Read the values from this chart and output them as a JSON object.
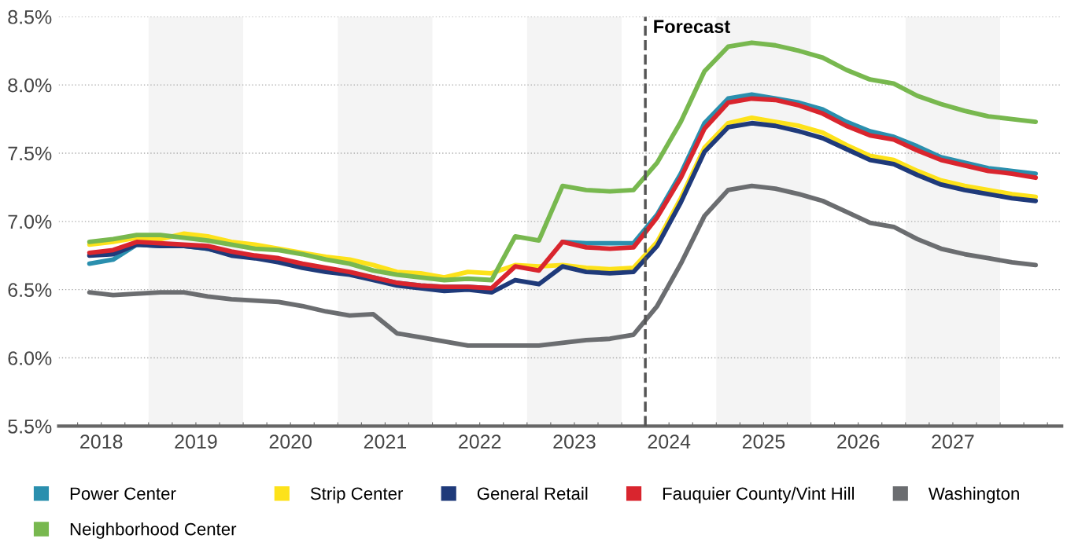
{
  "chart_data": {
    "type": "line",
    "x": [
      2018.375,
      2018.625,
      2018.875,
      2019.125,
      2019.375,
      2019.625,
      2019.875,
      2020.125,
      2020.375,
      2020.625,
      2020.875,
      2021.125,
      2021.375,
      2021.625,
      2021.875,
      2022.125,
      2022.375,
      2022.625,
      2022.875,
      2023.125,
      2023.375,
      2023.625,
      2023.875,
      2024.125,
      2024.375,
      2024.625,
      2024.875,
      2025.125,
      2025.375,
      2025.625,
      2025.875,
      2026.125,
      2026.375,
      2026.625,
      2026.875,
      2027.125,
      2027.375,
      2027.625,
      2027.875,
      2028.125,
      2028.375
    ],
    "series": [
      {
        "name": "Power Center",
        "color": "#2a8fae",
        "values": [
          6.69,
          6.72,
          6.83,
          6.82,
          6.82,
          6.8,
          6.76,
          6.74,
          6.72,
          6.68,
          6.65,
          6.62,
          6.59,
          6.55,
          6.53,
          6.52,
          6.52,
          6.51,
          null,
          null,
          6.85,
          6.84,
          6.84,
          6.84,
          7.05,
          7.35,
          7.72,
          7.9,
          7.93,
          7.9,
          7.87,
          7.82,
          7.73,
          7.66,
          7.62,
          7.55,
          7.47,
          7.43,
          7.39,
          7.37,
          7.35
        ]
      },
      {
        "name": "Strip Center",
        "color": "#fde21a",
        "values": [
          6.83,
          6.85,
          6.88,
          6.87,
          6.91,
          6.89,
          6.85,
          6.83,
          6.8,
          6.77,
          6.74,
          6.72,
          6.68,
          6.63,
          6.62,
          6.59,
          6.63,
          6.62,
          6.68,
          6.67,
          6.68,
          6.66,
          6.65,
          6.66,
          6.85,
          7.17,
          7.54,
          7.72,
          7.76,
          7.73,
          7.7,
          7.65,
          7.56,
          7.48,
          7.45,
          7.37,
          7.3,
          7.26,
          7.23,
          7.2,
          7.18
        ]
      },
      {
        "name": "General Retail",
        "color": "#1f3a7a",
        "values": [
          6.75,
          6.76,
          6.83,
          6.82,
          6.82,
          6.8,
          6.75,
          6.73,
          6.7,
          6.66,
          6.63,
          6.61,
          6.57,
          6.53,
          6.51,
          6.49,
          6.5,
          6.48,
          6.57,
          6.54,
          6.67,
          6.63,
          6.62,
          6.63,
          6.82,
          7.14,
          7.51,
          7.69,
          7.72,
          7.7,
          7.66,
          7.61,
          7.53,
          7.45,
          7.42,
          7.34,
          7.27,
          7.23,
          7.2,
          7.17,
          7.15
        ]
      },
      {
        "name": "Fauquier County/Vint Hill",
        "color": "#d9252e",
        "values": [
          6.77,
          6.79,
          6.85,
          6.84,
          6.83,
          6.82,
          6.78,
          6.75,
          6.73,
          6.69,
          6.66,
          6.63,
          6.59,
          6.55,
          6.53,
          6.52,
          6.52,
          6.51,
          6.67,
          6.64,
          6.85,
          6.81,
          6.8,
          6.81,
          7.03,
          7.32,
          7.68,
          7.87,
          7.9,
          7.89,
          7.85,
          7.79,
          7.7,
          7.63,
          7.6,
          7.52,
          7.45,
          7.41,
          7.37,
          7.35,
          7.32
        ]
      },
      {
        "name": "Washington",
        "color": "#6b6d70",
        "values": [
          6.48,
          6.46,
          6.47,
          6.48,
          6.48,
          6.45,
          6.43,
          6.42,
          6.41,
          6.38,
          6.34,
          6.31,
          6.32,
          6.18,
          6.15,
          6.12,
          6.09,
          6.09,
          6.09,
          6.09,
          6.11,
          6.13,
          6.14,
          6.17,
          6.38,
          6.69,
          7.04,
          7.23,
          7.26,
          7.24,
          7.2,
          7.15,
          7.07,
          6.99,
          6.96,
          6.87,
          6.8,
          6.76,
          6.73,
          6.7,
          6.68
        ]
      },
      {
        "name": "Neighborhood Center",
        "color": "#78b84f",
        "values": [
          6.85,
          6.87,
          6.9,
          6.9,
          6.88,
          6.86,
          6.83,
          6.8,
          6.79,
          6.76,
          6.72,
          6.69,
          6.64,
          6.61,
          6.59,
          6.57,
          6.58,
          6.57,
          6.89,
          6.86,
          7.26,
          7.23,
          7.22,
          7.23,
          7.43,
          7.73,
          8.1,
          8.28,
          8.31,
          8.29,
          8.25,
          8.2,
          8.11,
          8.04,
          8.01,
          7.92,
          7.86,
          7.81,
          7.77,
          7.75,
          7.73
        ]
      }
    ],
    "xlim": [
      2018.05,
      2028.65
    ],
    "xticks": [
      {
        "value": 2018.25,
        "label": null
      },
      {
        "value": 2018.5,
        "label": "2018"
      },
      {
        "value": 2018.75,
        "label": null
      },
      {
        "value": 2019,
        "label": null
      },
      {
        "value": 2019.25,
        "label": null
      },
      {
        "value": 2019.5,
        "label": "2019"
      },
      {
        "value": 2019.75,
        "label": null
      },
      {
        "value": 2020,
        "label": null
      },
      {
        "value": 2020.25,
        "label": null
      },
      {
        "value": 2020.5,
        "label": "2020"
      },
      {
        "value": 2020.75,
        "label": null
      },
      {
        "value": 2021,
        "label": null
      },
      {
        "value": 2021.25,
        "label": null
      },
      {
        "value": 2021.5,
        "label": "2021"
      },
      {
        "value": 2021.75,
        "label": null
      },
      {
        "value": 2022,
        "label": null
      },
      {
        "value": 2022.25,
        "label": null
      },
      {
        "value": 2022.5,
        "label": "2022"
      },
      {
        "value": 2022.75,
        "label": null
      },
      {
        "value": 2023,
        "label": null
      },
      {
        "value": 2023.25,
        "label": null
      },
      {
        "value": 2023.5,
        "label": "2023"
      },
      {
        "value": 2023.75,
        "label": null
      },
      {
        "value": 2024,
        "label": null
      },
      {
        "value": 2024.25,
        "label": null
      },
      {
        "value": 2024.5,
        "label": "2024"
      },
      {
        "value": 2024.75,
        "label": null
      },
      {
        "value": 2025,
        "label": null
      },
      {
        "value": 2025.25,
        "label": null
      },
      {
        "value": 2025.5,
        "label": "2025"
      },
      {
        "value": 2025.75,
        "label": null
      },
      {
        "value": 2026,
        "label": null
      },
      {
        "value": 2026.25,
        "label": null
      },
      {
        "value": 2026.5,
        "label": "2026"
      },
      {
        "value": 2026.75,
        "label": null
      },
      {
        "value": 2027,
        "label": null
      },
      {
        "value": 2027.25,
        "label": null
      },
      {
        "value": 2027.5,
        "label": "2027"
      },
      {
        "value": 2027.75,
        "label": null
      },
      {
        "value": 2028,
        "label": null
      },
      {
        "value": 2028.25,
        "label": null
      },
      {
        "value": 2028.5,
        "label": null
      }
    ],
    "ylim": [
      5.5,
      8.5
    ],
    "yticks": [
      {
        "value": 5.5,
        "label": "5.5%"
      },
      {
        "value": 6.0,
        "label": "6.0%"
      },
      {
        "value": 6.5,
        "label": "6.5%"
      },
      {
        "value": 7.0,
        "label": "7.0%"
      },
      {
        "value": 7.5,
        "label": "7.5%"
      },
      {
        "value": 8.0,
        "label": "8.0%"
      },
      {
        "value": 8.5,
        "label": "8.5%"
      }
    ],
    "grid": "y",
    "legend": "bottom",
    "marker": "none",
    "line_style": "solid",
    "bands": [
      {
        "axis": "x",
        "from": 2019,
        "to": 2020,
        "color": "#f4f4f4"
      },
      {
        "axis": "x",
        "from": 2021,
        "to": 2022,
        "color": "#f4f4f4"
      },
      {
        "axis": "x",
        "from": 2023,
        "to": 2024,
        "color": "#f4f4f4"
      },
      {
        "axis": "x",
        "from": 2025,
        "to": 2026,
        "color": "#f4f4f4"
      },
      {
        "axis": "x",
        "from": 2027,
        "to": 2028,
        "color": "#f4f4f4"
      }
    ],
    "ref_lines": [
      {
        "axis": "x",
        "value": 2024.25,
        "label": "Forecast",
        "color": "#555555",
        "line_style": "dashed"
      }
    ]
  }
}
